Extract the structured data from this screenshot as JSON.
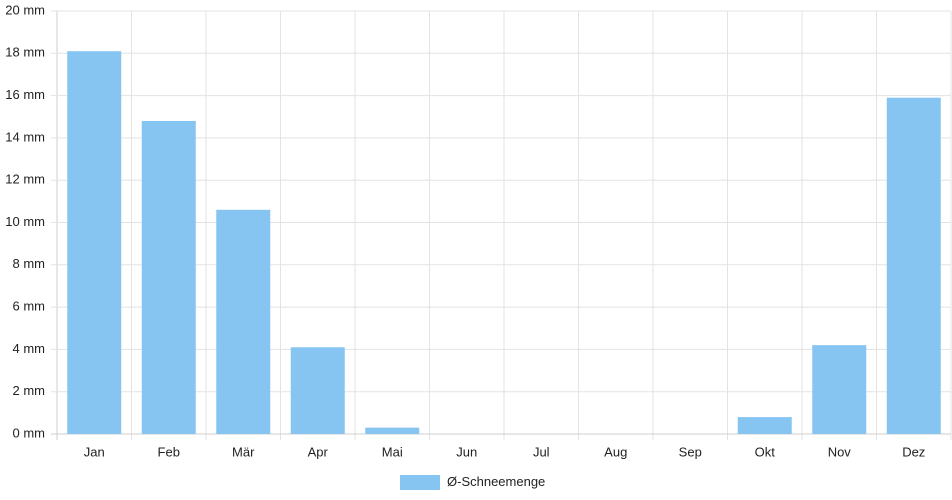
{
  "chart_data": {
    "type": "bar",
    "categories": [
      "Jan",
      "Feb",
      "Mär",
      "Apr",
      "Mai",
      "Jun",
      "Jul",
      "Aug",
      "Sep",
      "Okt",
      "Nov",
      "Dez"
    ],
    "series": [
      {
        "name": "Ø-Schneemenge",
        "color": "#86c5f2",
        "values": [
          18.1,
          14.8,
          10.6,
          4.1,
          0.3,
          0,
          0,
          0,
          0,
          0.8,
          4.2,
          15.9
        ]
      }
    ],
    "ylim": [
      0,
      20
    ],
    "yticks": [
      {
        "value": 0,
        "label": "0 mm"
      },
      {
        "value": 2,
        "label": "2 mm"
      },
      {
        "value": 4,
        "label": "4 mm"
      },
      {
        "value": 6,
        "label": "6 mm"
      },
      {
        "value": 8,
        "label": "8 mm"
      },
      {
        "value": 10,
        "label": "10 mm"
      },
      {
        "value": 12,
        "label": "12 mm"
      },
      {
        "value": 14,
        "label": "14 mm"
      },
      {
        "value": 16,
        "label": "16 mm"
      },
      {
        "value": 18,
        "label": "18 mm"
      },
      {
        "value": 20,
        "label": "20 mm"
      }
    ],
    "grid": true,
    "legend": "bottom"
  }
}
